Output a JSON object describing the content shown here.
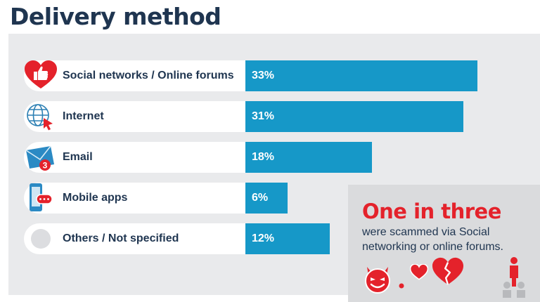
{
  "title": "Delivery method",
  "chart_data": {
    "type": "bar",
    "orientation": "horizontal",
    "categories": [
      "Social networks / Online forums",
      "Internet",
      "Email",
      "Mobile apps",
      "Others / Not specified"
    ],
    "values": [
      33,
      31,
      18,
      6,
      12
    ],
    "value_labels": [
      "33%",
      "31%",
      "18%",
      "6%",
      "12%"
    ],
    "unit": "%",
    "xlim": [
      0,
      36
    ],
    "bar_color": "#1698c8",
    "grid": false,
    "legend": "none"
  },
  "rows": [
    {
      "label": "Social networks / Online forums",
      "value": "33%",
      "icon": "heart-thumbs-up-icon"
    },
    {
      "label": "Internet",
      "value": "31%",
      "icon": "globe-cursor-icon"
    },
    {
      "label": "Email",
      "value": "18%",
      "icon": "envelope-icon"
    },
    {
      "label": "Mobile apps",
      "value": "6%",
      "icon": "smartphone-chat-icon"
    },
    {
      "label": "Others / Not specified",
      "value": "12%",
      "icon": "circle-placeholder-icon"
    }
  ],
  "callout": {
    "headline": "One in three",
    "text": "were scammed via Social networking or online forums."
  },
  "badges": {
    "email_count": "3"
  },
  "colors": {
    "title": "#1f3550",
    "accent_red": "#e4222b",
    "bar": "#1698c8",
    "panel": "#e9eaec",
    "callout_bg": "#dadbdd"
  }
}
